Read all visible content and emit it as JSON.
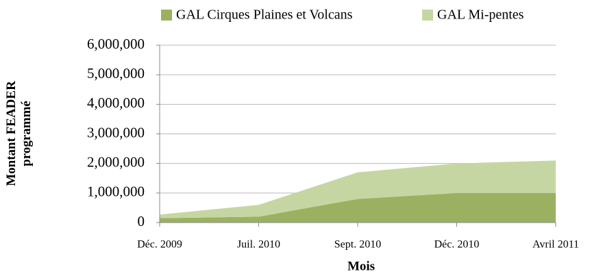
{
  "chart_data": {
    "type": "stacked_area",
    "categories": [
      "Déc. 2009",
      "Juil. 2010",
      "Sept. 2010",
      "Déc. 2010",
      "Avril 2011"
    ],
    "series": [
      {
        "name": "GAL Cirques Plaines et Volcans",
        "color": "#9bb161",
        "values": [
          150000,
          200000,
          800000,
          1000000,
          1000000
        ]
      },
      {
        "name": "GAL Mi-pentes",
        "color": "#c6d6a2",
        "values": [
          120000,
          400000,
          900000,
          1000000,
          1100000
        ]
      }
    ],
    "ylim": [
      0,
      6000000
    ],
    "yticks": [
      {
        "value": 0,
        "label": "0"
      },
      {
        "value": 1000000,
        "label": "1,000,000"
      },
      {
        "value": 2000000,
        "label": "2,000,000"
      },
      {
        "value": 3000000,
        "label": "3,000,000"
      },
      {
        "value": 4000000,
        "label": "4,000,000"
      },
      {
        "value": 5000000,
        "label": "5,000,000"
      },
      {
        "value": 6000000,
        "label": "6,000,000"
      }
    ],
    "xlabel": "Mois",
    "ylabel": "Montant FEADER programmé",
    "grid": true,
    "legend": "top"
  }
}
